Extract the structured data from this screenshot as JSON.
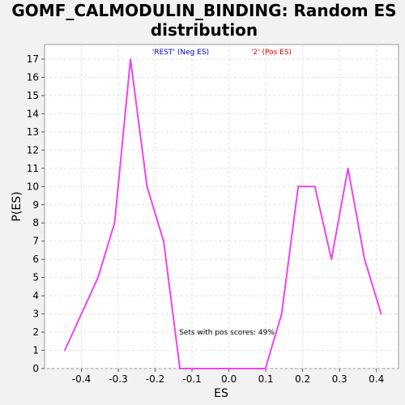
{
  "chart_data": {
    "type": "line",
    "title_lines": [
      "GOMF_CALMODULIN_BINDING: Random ES",
      "distribution"
    ],
    "xlabel": "ES",
    "ylabel": "P(ES)",
    "xlim": [
      -0.5,
      0.46
    ],
    "ylim": [
      0,
      17.8
    ],
    "x_ticks": [
      -0.4,
      -0.3,
      -0.2,
      -0.1,
      0.0,
      0.1,
      0.2,
      0.3,
      0.4
    ],
    "x_tick_labels": [
      "-0.4",
      "-0.3",
      "-0.2",
      "-0.1",
      "0.0",
      "0.1",
      "0.2",
      "0.3",
      "0.4"
    ],
    "y_ticks": [
      0,
      1,
      2,
      3,
      4,
      5,
      6,
      7,
      8,
      9,
      10,
      11,
      12,
      13,
      14,
      15,
      16,
      17
    ],
    "y_tick_labels": [
      "0",
      "1",
      "2",
      "3",
      "4",
      "5",
      "6",
      "7",
      "8",
      "9",
      "10",
      "11",
      "12",
      "13",
      "14",
      "15",
      "16",
      "17"
    ],
    "grid": true,
    "legend": [
      {
        "label": "'REST' (Neg ES)",
        "color": "#0000cc"
      },
      {
        "label": "'2' (Pos ES)",
        "color": "#dd0000"
      }
    ],
    "annotation": "Sets with pos scores: 49%",
    "series": [
      {
        "color": "#ee44ee",
        "x": [
          -0.445,
          -0.355,
          -0.31,
          -0.267,
          -0.222,
          -0.177,
          -0.133,
          -0.088,
          -0.044,
          0.0,
          0.044,
          0.099,
          0.143,
          0.188,
          0.233,
          0.278,
          0.323,
          0.368,
          0.413
        ],
        "y": [
          1,
          5,
          8,
          17,
          10,
          7,
          0,
          0,
          0,
          0,
          0,
          0,
          3,
          10,
          10,
          6,
          11,
          6,
          3
        ]
      }
    ]
  }
}
